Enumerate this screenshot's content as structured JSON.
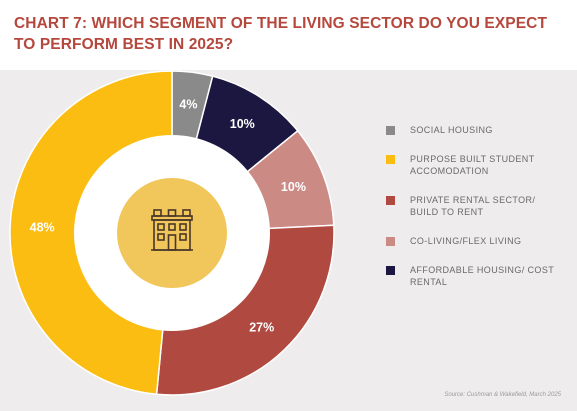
{
  "title": "CHART 7: WHICH SEGMENT OF THE LIVING SECTOR DO YOU EXPECT TO PERFORM BEST IN 2025?",
  "source": "Source: Cushman & Wakefield, March 2025",
  "center_icon": "building-icon",
  "colors": {
    "title": "#b5473c",
    "background_panel": "#eeecec",
    "center_circle": "#f1c65b",
    "icon_stroke": "#4a3728"
  },
  "chart_data": {
    "type": "pie",
    "donut": true,
    "title": "CHART 7: WHICH SEGMENT OF THE LIVING SECTOR DO YOU EXPECT TO PERFORM BEST IN 2025?",
    "unit": "%",
    "legend_position": "right",
    "slices": [
      {
        "label": "SOCIAL HOUSING",
        "value": 4,
        "display": "4%",
        "color": "#8a8a8a"
      },
      {
        "label": "AFFORDABLE HOUSING/ COST RENTAL",
        "value": 10,
        "display": "10%",
        "color": "#1c1740"
      },
      {
        "label": "CO-LIVING/FLEX LIVING",
        "value": 10,
        "display": "10%",
        "color": "#cc8a85"
      },
      {
        "label": "PRIVATE RENTAL SECTOR/ BUILD TO RENT",
        "value": 27,
        "display": "27%",
        "color": "#b04a41"
      },
      {
        "label": "PURPOSE BUILT STUDENT ACCOMODATION",
        "value": 48,
        "display": "48%",
        "color": "#fbbd11"
      }
    ],
    "legend": [
      {
        "label": "SOCIAL HOUSING",
        "color": "#8a8a8a"
      },
      {
        "label": "PURPOSE BUILT STUDENT ACCOMODATION",
        "color": "#fbbd11"
      },
      {
        "label": "PRIVATE RENTAL SECTOR/ BUILD TO RENT",
        "color": "#b04a41"
      },
      {
        "label": "CO-LIVING/FLEX LIVING",
        "color": "#cc8a85"
      },
      {
        "label": "AFFORDABLE HOUSING/ COST RENTAL",
        "color": "#1c1740"
      }
    ]
  }
}
